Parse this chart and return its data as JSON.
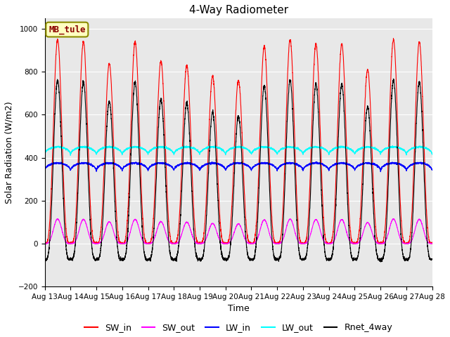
{
  "title": "4-Way Radiometer",
  "xlabel": "Time",
  "ylabel": "Solar Radiation (W/m2)",
  "site_label": "MB_tule",
  "ylim": [
    -200,
    1050
  ],
  "yticks": [
    -200,
    0,
    200,
    400,
    600,
    800,
    1000
  ],
  "colors": {
    "SW_in": "#ff0000",
    "SW_out": "#ff00ff",
    "LW_in": "#0000ff",
    "LW_out": "#00ffff",
    "Rnet_4way": "#000000"
  },
  "bg_color": "#e8e8e8",
  "n_days": 15,
  "start_day": 13,
  "points_per_day": 288,
  "sw_peaks": [
    950,
    940,
    840,
    940,
    850,
    830,
    780,
    760,
    920,
    950,
    930,
    930,
    810,
    950,
    940
  ],
  "lw_in_base": 340,
  "lw_out_base": 415,
  "night_rnet": -100
}
